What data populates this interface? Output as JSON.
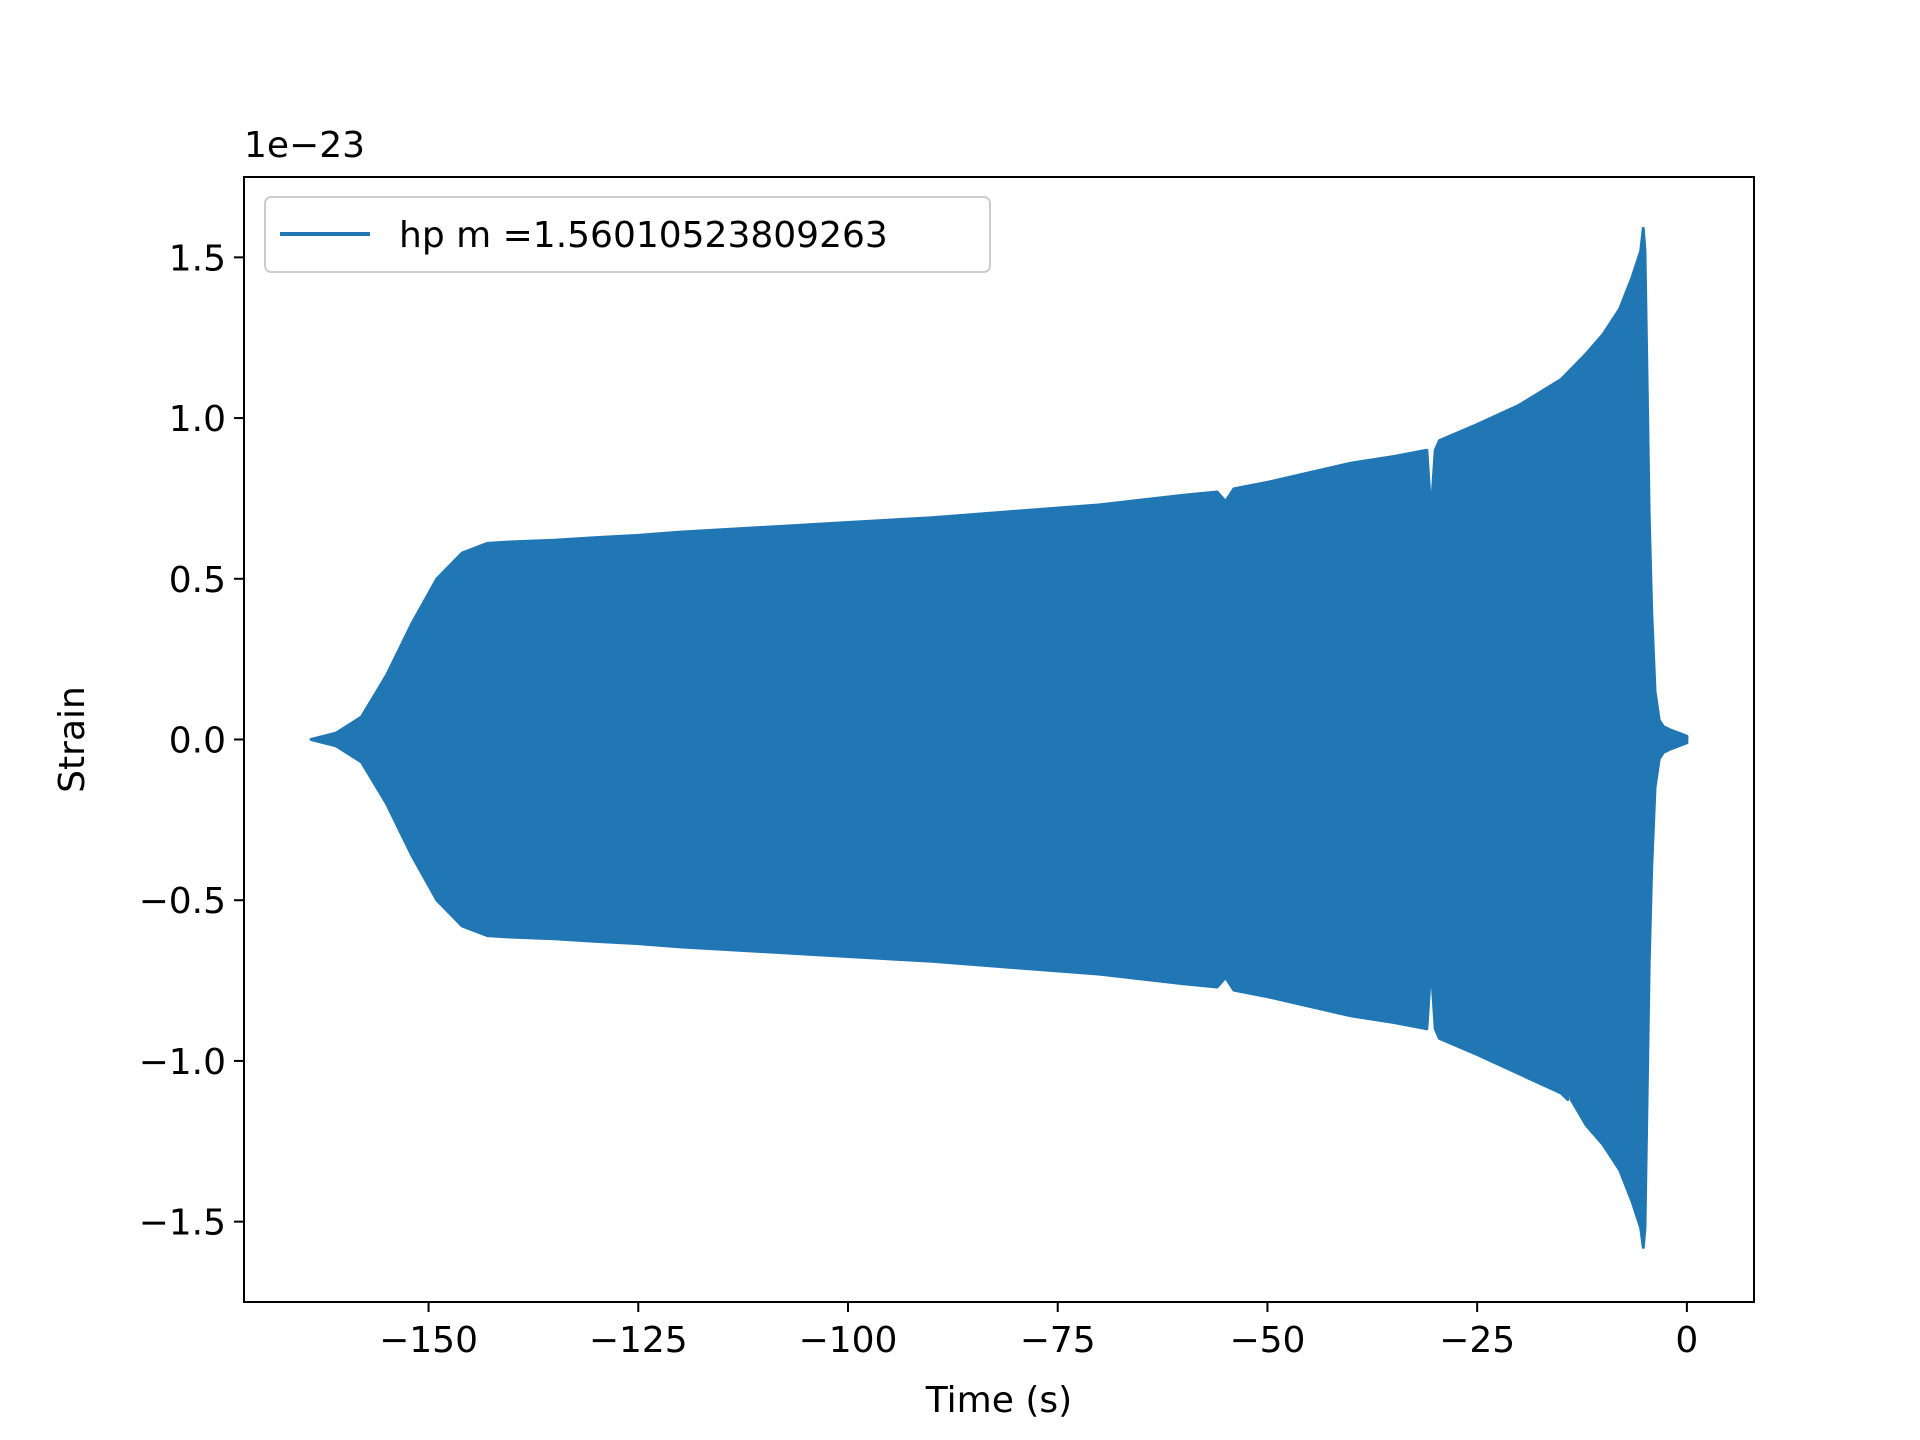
{
  "chart_data": {
    "type": "line",
    "title": "",
    "xlabel": "Time (s)",
    "ylabel": "Strain",
    "y_scale_label": "1e−23",
    "xlim": [
      -172,
      8
    ],
    "ylim": [
      -1.75,
      1.75
    ],
    "xticks": [
      -150,
      -125,
      -100,
      -75,
      -50,
      -25,
      0
    ],
    "xtick_labels": [
      "−150",
      "−125",
      "−100",
      "−75",
      "−50",
      "−25",
      "0"
    ],
    "yticks": [
      -1.5,
      -1.0,
      -0.5,
      0.0,
      0.5,
      1.0,
      1.5
    ],
    "ytick_labels": [
      "−1.5",
      "−1.0",
      "−0.5",
      "0.0",
      "0.5",
      "1.0",
      "1.5"
    ],
    "grid": false,
    "legend_position": "upper-left",
    "color": "#2077b4",
    "series": [
      {
        "name": "hp m =1.56010523809263",
        "envelope_upper": {
          "x": [
            -164,
            -161,
            -158,
            -155,
            -152,
            -149,
            -146,
            -143,
            -140,
            -135,
            -130,
            -125,
            -120,
            -110,
            -100,
            -90,
            -80,
            -70,
            -60,
            -56,
            -55,
            -54,
            -50,
            -45,
            -40,
            -35,
            -31,
            -30.5,
            -30,
            -29.5,
            -25,
            -20,
            -15,
            -12,
            -10,
            -8,
            -6.5,
            -5.5,
            -5.2,
            -5.0,
            -4.8,
            -4.5,
            -4.2,
            -3.8,
            -3.3,
            -2.8,
            -2,
            -1,
            0
          ],
          "y": [
            0.0,
            0.02,
            0.07,
            0.2,
            0.36,
            0.5,
            0.58,
            0.61,
            0.615,
            0.62,
            0.628,
            0.635,
            0.645,
            0.66,
            0.675,
            0.69,
            0.71,
            0.73,
            0.76,
            0.77,
            0.74,
            0.78,
            0.8,
            0.83,
            0.86,
            0.88,
            0.9,
            0.7,
            0.9,
            0.93,
            0.98,
            1.04,
            1.12,
            1.2,
            1.26,
            1.34,
            1.44,
            1.52,
            1.59,
            1.52,
            1.2,
            0.7,
            0.4,
            0.15,
            0.06,
            0.04,
            0.03,
            0.02,
            0.01
          ]
        },
        "envelope_lower": {
          "x": [
            -164,
            -161,
            -158,
            -155,
            -152,
            -149,
            -146,
            -143,
            -140,
            -135,
            -130,
            -125,
            -120,
            -110,
            -100,
            -90,
            -80,
            -70,
            -60,
            -56,
            -55,
            -54,
            -50,
            -45,
            -40,
            -35,
            -31,
            -30.5,
            -30,
            -29.5,
            -25,
            -20,
            -15,
            -14.2,
            -14,
            -13.8,
            -12,
            -10,
            -8,
            -6.5,
            -5.5,
            -5.2,
            -5.0,
            -4.8,
            -4.5,
            -4.2,
            -3.8,
            -3.3,
            -2.8,
            -2,
            -1,
            0
          ],
          "y": [
            0.0,
            -0.02,
            -0.07,
            -0.2,
            -0.36,
            -0.5,
            -0.58,
            -0.61,
            -0.615,
            -0.62,
            -0.628,
            -0.635,
            -0.645,
            -0.66,
            -0.675,
            -0.69,
            -0.71,
            -0.73,
            -0.76,
            -0.77,
            -0.74,
            -0.78,
            -0.8,
            -0.83,
            -0.86,
            -0.88,
            -0.9,
            -0.7,
            -0.9,
            -0.93,
            -0.98,
            -1.04,
            -1.1,
            -1.12,
            -0.95,
            -1.12,
            -1.2,
            -1.26,
            -1.34,
            -1.44,
            -1.52,
            -1.58,
            -1.52,
            -1.2,
            -0.7,
            -0.4,
            -0.15,
            -0.06,
            -0.04,
            -0.03,
            -0.02,
            -0.01
          ]
        }
      }
    ]
  }
}
